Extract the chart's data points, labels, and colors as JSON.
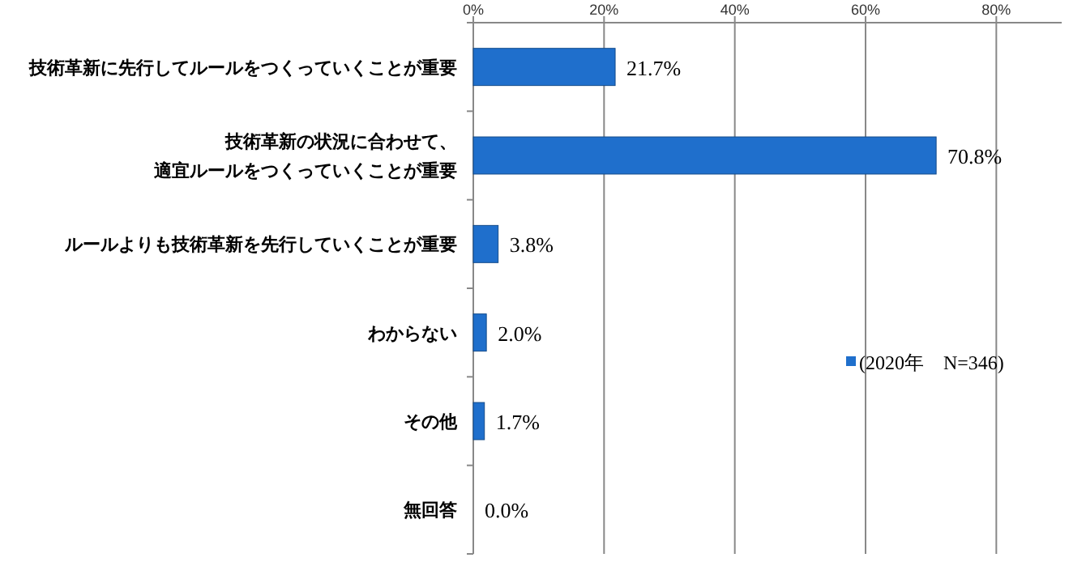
{
  "chart_data": {
    "type": "bar",
    "orientation": "horizontal",
    "categories": [
      "技術革新に先行してルールをつくっていくことが重要",
      "技術革新の状況に合わせて、適宜ルールをつくっていくことが重要",
      "ルールよりも技術革新を先行していくことが重要",
      "わからない",
      "その他",
      "無回答"
    ],
    "series": [
      {
        "name": "(2020年　N=346)",
        "color": "#1f6fcc",
        "values": [
          21.7,
          70.8,
          3.8,
          2.0,
          1.7,
          0.0
        ]
      }
    ],
    "value_labels": [
      "21.7%",
      "70.8%",
      "3.8%",
      "2.0%",
      "1.7%",
      "0.0%"
    ],
    "xlim": [
      0,
      90
    ],
    "xticks": [
      {
        "value": 0,
        "label": "0%"
      },
      {
        "value": 20,
        "label": "20%"
      },
      {
        "value": 40,
        "label": "40%"
      },
      {
        "value": 60,
        "label": "60%"
      },
      {
        "value": 80,
        "label": "80%"
      }
    ],
    "grid": "x",
    "legend": "right"
  }
}
